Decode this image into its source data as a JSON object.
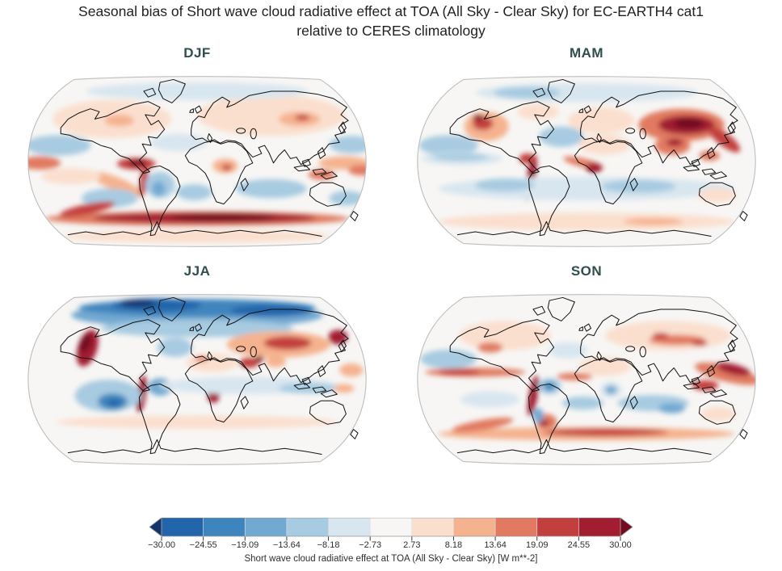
{
  "figure": {
    "title_line1": "Seasonal bias of Short wave cloud radiative effect at TOA (All Sky - Clear Sky) for EC-EARTH4 cat1",
    "title_line2": "relative to CERES climatology"
  },
  "panels": [
    {
      "key": "djf",
      "label": "DJF"
    },
    {
      "key": "mam",
      "label": "MAM"
    },
    {
      "key": "jja",
      "label": "JJA"
    },
    {
      "key": "son",
      "label": "SON"
    }
  ],
  "colorbar": {
    "label": "Short wave cloud radiative effect at TOA (All Sky - Clear Sky) [W m**-2]",
    "ticks": [
      "−30.00",
      "−24.55",
      "−19.09",
      "−13.64",
      "−8.18",
      "−2.73",
      "2.73",
      "8.18",
      "13.64",
      "19.09",
      "24.55",
      "30.00"
    ],
    "under_color": "#12366b",
    "segment_colors": [
      "#2265ab",
      "#3f85bd",
      "#72a9d1",
      "#a7cbe1",
      "#d8e6ef",
      "#f7f6f4",
      "#fbdfce",
      "#f5b28f",
      "#e17a60",
      "#c33f3e",
      "#a21d30"
    ],
    "over_color": "#720a21",
    "outline_color": "#9a9a9a",
    "tick_color": "#3a3a3a"
  },
  "style_colors": {
    "figure_title": "#1f1f1f",
    "panel_title": "#2f4f4d",
    "coastline": "#121212",
    "map_frame": "#bdbdbd",
    "map_base": "#f7f6f4"
  },
  "chart_data": {
    "type": "heatmap",
    "subtype": "filled-contour world maps (Robinson projection), 2x2 seasonal panels",
    "title": "Seasonal bias of Short wave cloud radiative effect at TOA (All Sky - Clear Sky) for EC-EARTH4 cat1 relative to CERES climatology",
    "panels": [
      "DJF",
      "MAM",
      "JJA",
      "SON"
    ],
    "variable": "Short wave cloud radiative effect at TOA (All Sky - Clear Sky)",
    "units": "W m**-2",
    "model": "EC-EARTH4 cat1",
    "reference": "CERES climatology",
    "levels": [
      -30.0,
      -24.55,
      -19.09,
      -13.64,
      -8.18,
      -2.73,
      2.73,
      8.18,
      13.64,
      19.09,
      24.55,
      30.0
    ],
    "value_range": [
      -30,
      30
    ],
    "colormap": "RdBu_r (discrete, 11 classes)",
    "colorbar_extend": "both (triangular under/over arrows)",
    "legend_position": "bottom, horizontal, centered",
    "notable_patterns": {
      "DJF": "Strong positive bias (dark red) band along the Southern Ocean ~60S; positive bias in tropical east Pacific/Peru coast and west Pacific; weak positive bias over NH continents; negative bias over subtropical oceans and Amazon.",
      "MAM": "Large strong positive bias over central/east Asia; positive bias over western North America and Peru-Chile coast; negative bias over North Pacific, North Atlantic and equatorial central Pacific; weak negative bias over southern subtropical oceans.",
      "JJA": "Strong negative bias (dark blue) over the Arctic; strong positive bias off western North America and off Namibia/Angola and Peru; positive bias over Eurasia; negative bias over southeast Pacific, Amazon and tropical oceans.",
      "SON": "Positive bias band over the Southern Ocean and tropical Pacific ITCZ/west Pacific; strong positive bias along Peru coast and southeastern South America; local strong negative bias over Amazon and Congo; negative bias over subtropical southern oceans."
    }
  }
}
